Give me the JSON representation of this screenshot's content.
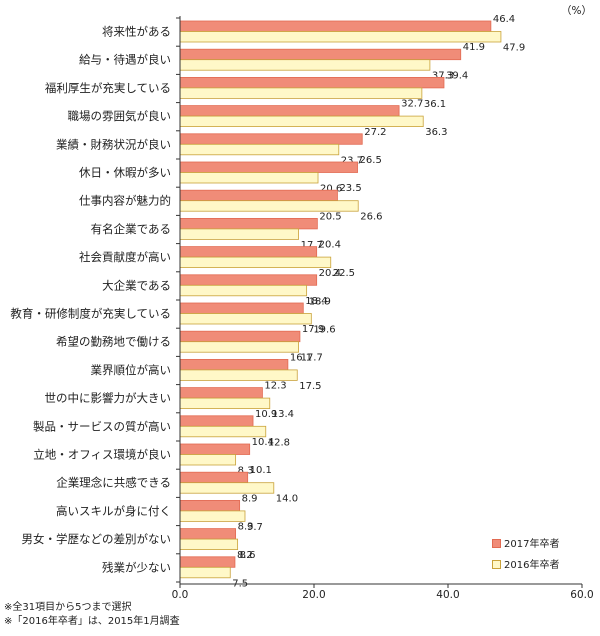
{
  "chart_data": {
    "type": "bar",
    "orientation": "horizontal",
    "unit": "（%）",
    "categories": [
      "将来性がある",
      "給与・待遇が良い",
      "福利厚生が充実している",
      "職場の雰囲気が良い",
      "業績・財務状況が良い",
      "休日・休暇が多い",
      "仕事内容が魅力的",
      "有名企業である",
      "社会貢献度が高い",
      "大企業である",
      "教育・研修制度が充実している",
      "希望の勤務地で働ける",
      "業界順位が高い",
      "世の中に影響力が大きい",
      "製品・サービスの質が高い",
      "立地・オフィス環境が良い",
      "企業理念に共感できる",
      "高いスキルが身に付く",
      "男女・学歴などの差別がない",
      "残業が少ない"
    ],
    "series": [
      {
        "name": "2017年卒者",
        "color": "#F08C78",
        "border": "#E26A52",
        "values": [
          46.4,
          41.9,
          39.4,
          32.7,
          27.2,
          26.5,
          23.5,
          20.5,
          20.4,
          20.4,
          18.4,
          17.9,
          16.1,
          12.3,
          10.9,
          10.4,
          10.1,
          8.9,
          8.3,
          8.2
        ]
      },
      {
        "name": "2016年卒者",
        "color": "#FFF8C8",
        "border": "#C9A23A",
        "values": [
          47.9,
          37.3,
          36.1,
          36.3,
          23.7,
          20.6,
          26.6,
          17.7,
          22.5,
          18.9,
          19.6,
          17.7,
          17.5,
          13.4,
          12.8,
          8.3,
          14.0,
          9.7,
          8.6,
          7.5
        ]
      }
    ],
    "xlim": [
      0,
      60
    ],
    "xticks": [
      "0.0",
      "20.0",
      "40.0",
      "60.0"
    ],
    "grid": false,
    "legend": "bottom-right"
  },
  "notes": [
    "※全31項目から5つまで選択",
    "※「2016年卒者」は、2015年1月調査"
  ]
}
